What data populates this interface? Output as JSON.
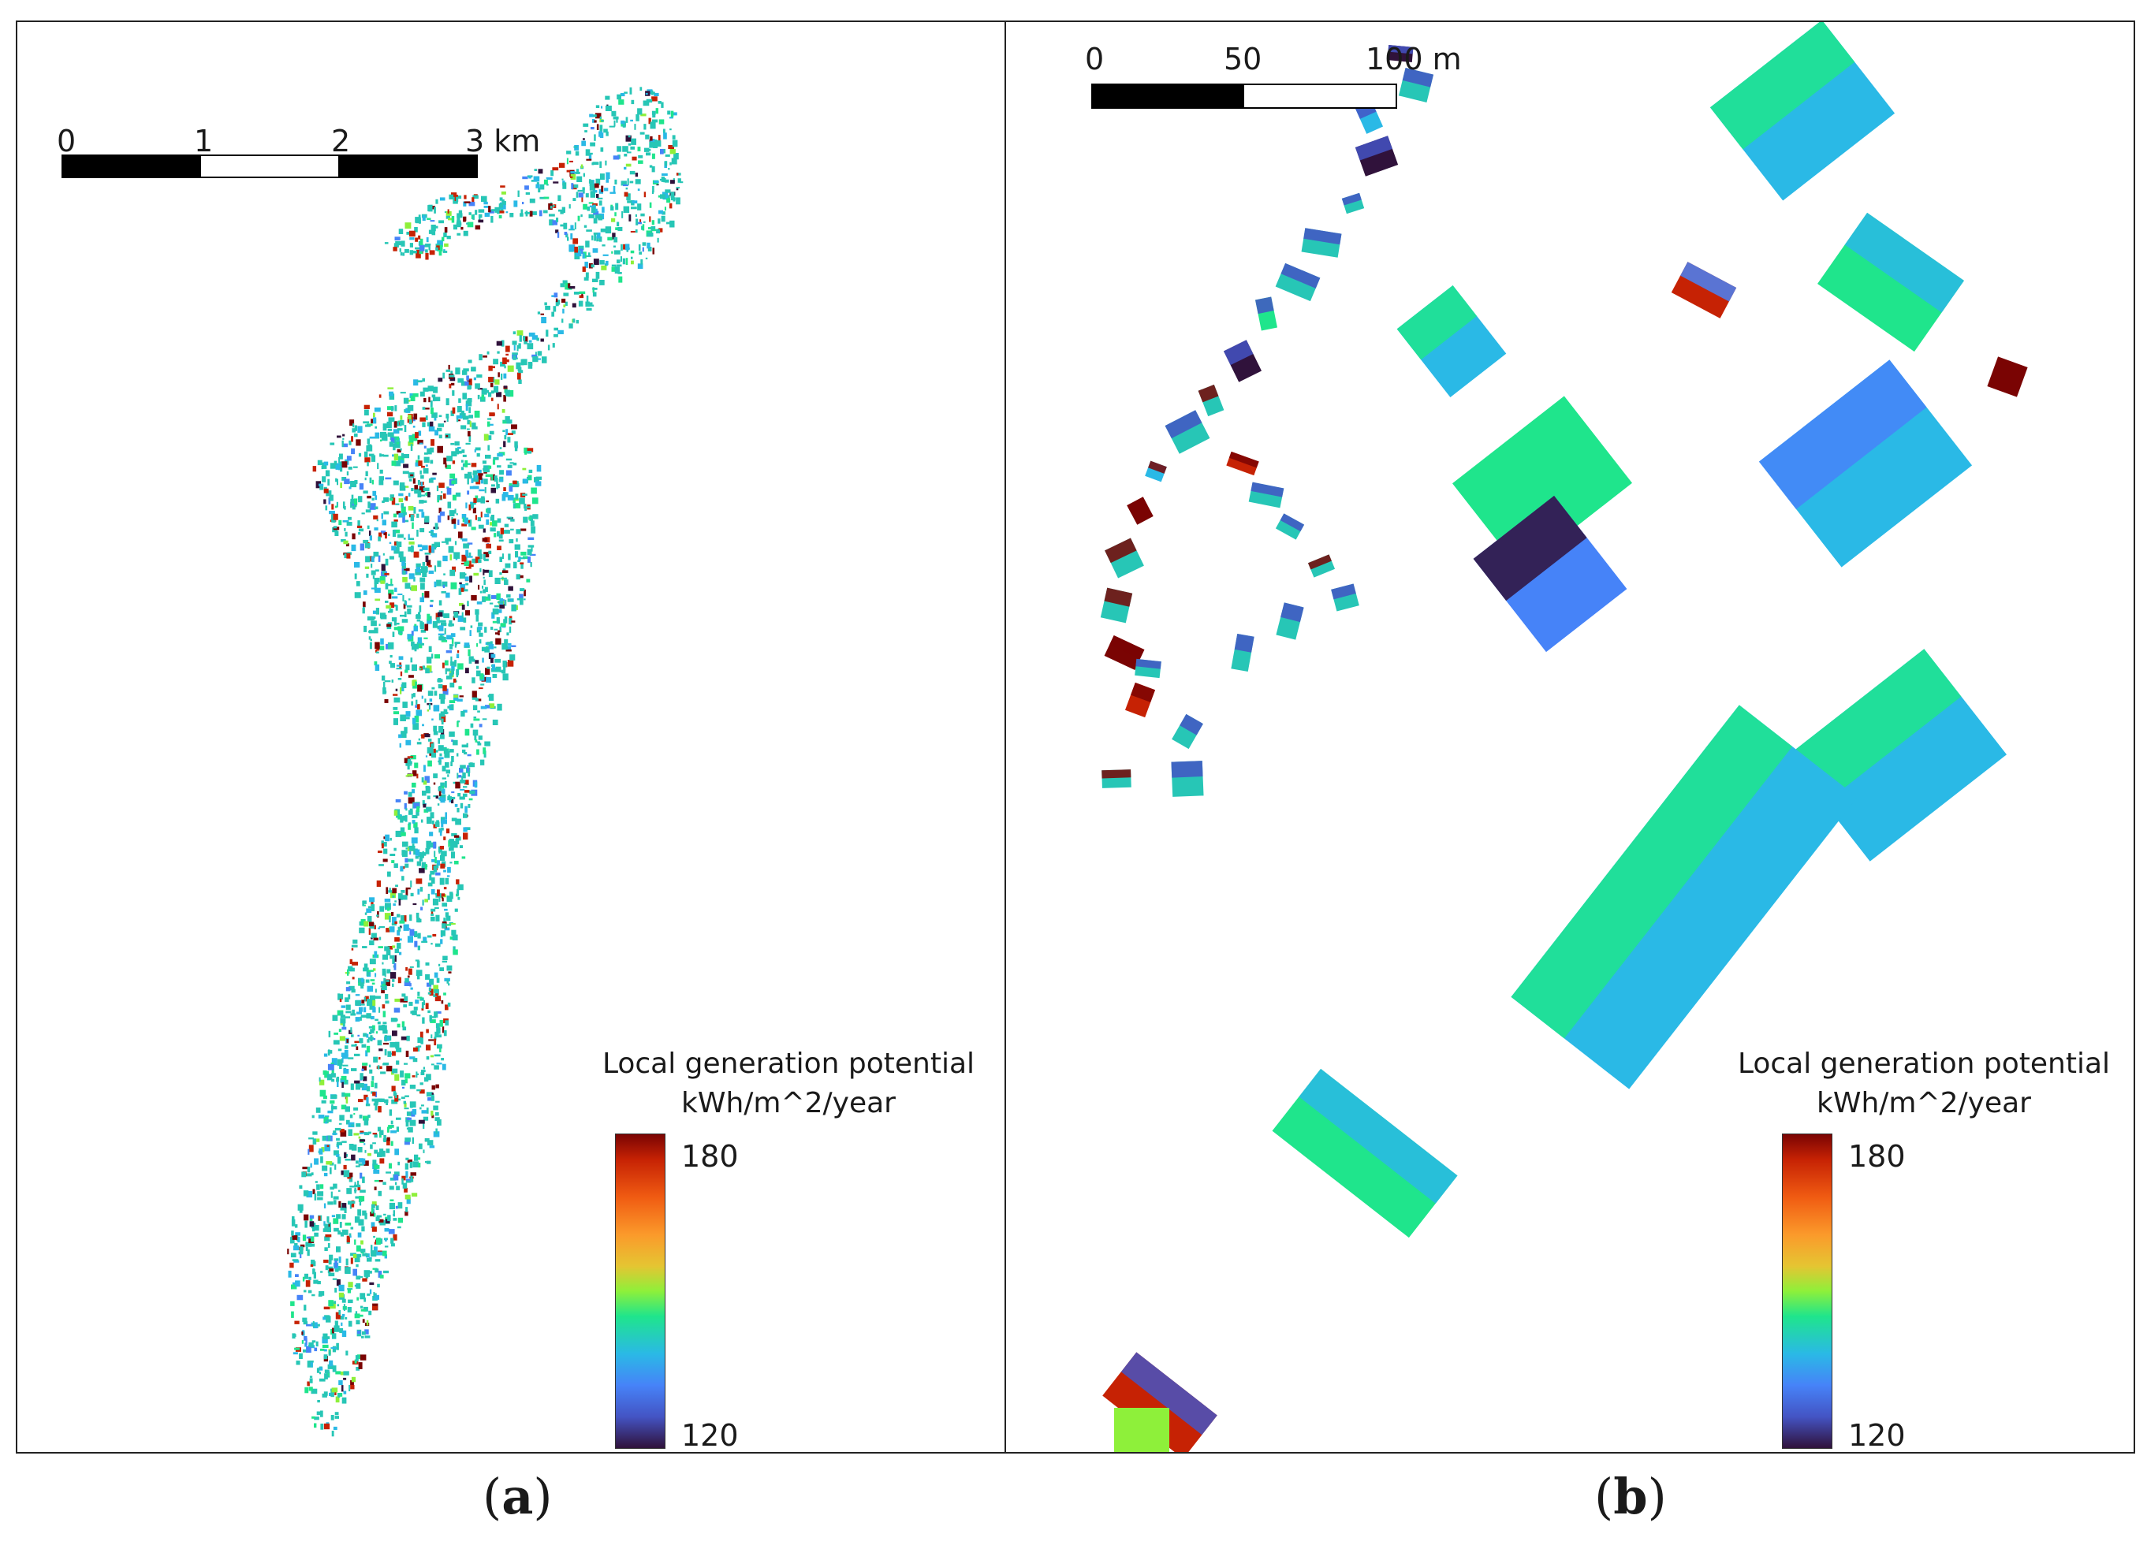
{
  "panels": [
    {
      "id": "a",
      "caption_letter": "a",
      "scale_labels": [
        "0",
        "1",
        "2",
        "3 km"
      ],
      "legend": {
        "title": "Local generation potential",
        "unit": "kWh/m^2/year",
        "max": "180",
        "min": "120"
      }
    },
    {
      "id": "b",
      "caption_letter": "b",
      "scale_labels": [
        "0",
        "50",
        "100 m"
      ],
      "legend": {
        "title": "Local generation potential",
        "unit": "kWh/m^2/year",
        "max": "180",
        "min": "120"
      }
    }
  ],
  "colors": {
    "ramp": [
      "#30123b",
      "#4454c4",
      "#4683f8",
      "#2ab9e6",
      "#1fe58c",
      "#8ef03a",
      "#e5c532",
      "#fb9a2b",
      "#f05b12",
      "#c62204",
      "#7a0403"
    ],
    "dominant_roof": "#27c6b6"
  }
}
